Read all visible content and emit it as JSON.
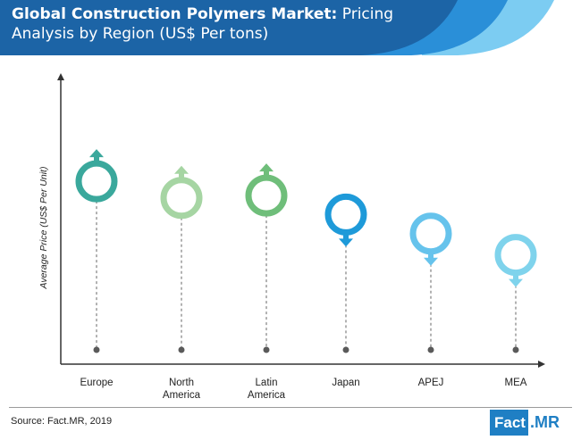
{
  "header": {
    "title_bold": "Global Construction Polymers Market:",
    "title_rest": " Pricing Analysis by Region (US$ Per tons)"
  },
  "footer": {
    "source": "Source: Fact.MR, 2019",
    "logo_left": "Fact",
    "logo_right": ".MR"
  },
  "chart_data": {
    "type": "scatter",
    "ylabel": "Average Price (US$ Per Unit)",
    "xlabel": "",
    "categories": [
      "Europe",
      "North America",
      "Latin America",
      "Japan",
      "APEJ",
      "MEA"
    ],
    "category_lines": [
      [
        "Europe"
      ],
      [
        "North",
        "America"
      ],
      [
        "Latin",
        "America"
      ],
      [
        "Japan"
      ],
      [
        "APEJ"
      ],
      [
        "MEA"
      ]
    ],
    "values": [
      0.77,
      0.7,
      0.71,
      0.63,
      0.55,
      0.46
    ],
    "directions": [
      "up",
      "up",
      "up",
      "down",
      "down",
      "down"
    ],
    "colors": [
      "#3aa89c",
      "#a6d5a3",
      "#6fbe7a",
      "#1e9ad9",
      "#66c3ec",
      "#7fd3ec"
    ],
    "ylim": [
      0,
      1
    ],
    "grid": false,
    "legend": "none"
  },
  "colors": {
    "header_dark": "#1c64a6",
    "header_mid": "#2a8fd8",
    "header_light": "#59b8ec",
    "logo_blue": "#1f7fc4"
  }
}
